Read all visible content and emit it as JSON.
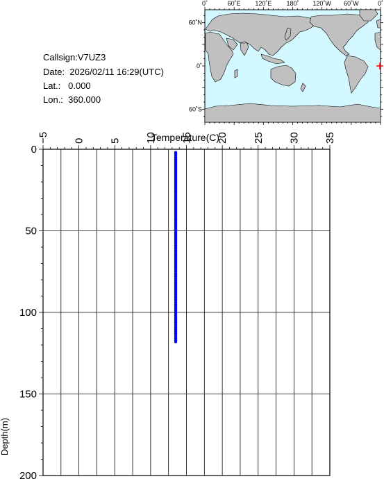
{
  "info": {
    "callsign": "Callsign:V7UZ3",
    "date": "Date:  2026/02/11 16:29(UTC)",
    "lat": "Lat.:   0.000",
    "lon": "Lon.:  360.000"
  },
  "map": {
    "lon_labels": [
      "0˚",
      "60˚E",
      "120˚E",
      "180˚",
      "120˚W",
      "60˚W",
      "0˚"
    ],
    "lat_labels": [
      "60˚N",
      "0˚",
      "60˚S"
    ],
    "ocean_color": "#d4f8ff",
    "land_color": "#c0c0c0",
    "marker_color": "#ff0000"
  },
  "chart_data": {
    "type": "scatter",
    "xlabel": "Temperature(C)",
    "ylabel": "Depth(m)",
    "xlim": [
      -5,
      35
    ],
    "ylim": [
      0,
      200
    ],
    "y_inverted": true,
    "x_axis_position": "top",
    "grid": true,
    "x_ticks": [
      -5,
      0,
      5,
      10,
      15,
      20,
      25,
      30,
      35
    ],
    "y_ticks": [
      0,
      50,
      100,
      150,
      200
    ],
    "x_tick_labels": [
      "−5",
      "0",
      "5",
      "10",
      "15",
      "20",
      "25",
      "30",
      "35"
    ],
    "y_tick_labels": [
      "0",
      "50",
      "100",
      "150",
      "200"
    ],
    "point_color": "#0000ff",
    "series": [
      {
        "temperature": 13.5,
        "depth_start": 2,
        "depth_end": 118,
        "depth_step": 1
      }
    ]
  }
}
